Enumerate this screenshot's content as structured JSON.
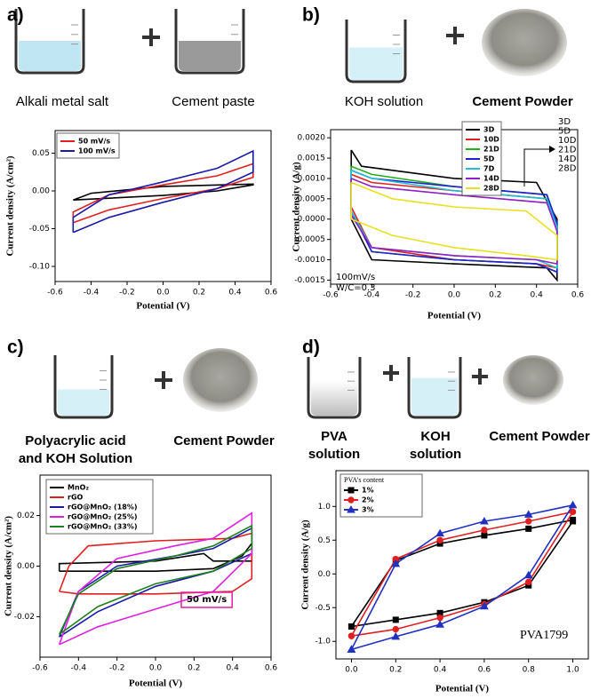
{
  "panels": [
    {
      "label": "a)",
      "ingredients": [
        [
          "Alkali metal salt"
        ],
        [
          "Cement paste"
        ]
      ]
    },
    {
      "label": "b)",
      "ingredients": [
        [
          "KOH solution"
        ],
        [
          "Cement Powder"
        ]
      ]
    },
    {
      "label": "c)",
      "ingredients": [
        [
          "Polyacrylic acid",
          "and KOH Solution"
        ],
        [
          "Cement Powder"
        ]
      ]
    },
    {
      "label": "d)",
      "ingredients": [
        [
          "PVA",
          "solution"
        ],
        [
          "KOH",
          "solution"
        ],
        [
          "Cement Powder"
        ]
      ]
    }
  ],
  "chart_data": [
    {
      "type": "line",
      "x_label": "Potential (V)",
      "y_label": "Current density (A/cm²)",
      "xlim": [
        -0.6,
        0.6
      ],
      "xticks": [
        -0.6,
        -0.4,
        -0.2,
        {
          "value": 0,
          "label": "0.0"
        },
        0.2,
        0.4,
        0.6
      ],
      "ylim": [
        -0.12,
        0.08
      ],
      "yticks": [
        0.05,
        {
          "value": 0,
          "label": "0.00"
        },
        -0.05,
        {
          "value": -0.1,
          "label": "-0.10"
        }
      ],
      "legend": "upper left",
      "series": [
        {
          "color": "#000000",
          "x": [
            -0.5,
            -0.4,
            0,
            0.5,
            0.5,
            0.3,
            0,
            -0.5
          ],
          "values": [
            -0.012,
            -0.003,
            0.006,
            0.009,
            0.008,
            0.0,
            -0.006,
            -0.012
          ]
        },
        {
          "name": "50 mV/s",
          "color": "#e02020",
          "x": [
            -0.5,
            -0.5,
            -0.3,
            0,
            0.3,
            0.5,
            0.5,
            0.3,
            0,
            -0.3,
            -0.5
          ],
          "values": [
            -0.042,
            -0.028,
            -0.005,
            0.008,
            0.02,
            0.036,
            0.018,
            0.003,
            -0.01,
            -0.025,
            -0.042
          ]
        },
        {
          "name": "100 mV/s",
          "color": "#1a1aa8",
          "x": [
            -0.5,
            -0.5,
            -0.3,
            0,
            0.3,
            0.5,
            0.5,
            0.3,
            0,
            -0.3,
            -0.5
          ],
          "values": [
            -0.055,
            -0.035,
            -0.005,
            0.012,
            0.03,
            0.053,
            0.025,
            0.003,
            -0.015,
            -0.035,
            -0.055
          ]
        }
      ]
    },
    {
      "type": "line",
      "x_label": "Potential (V)",
      "y_label": "Current density (A/g)",
      "xlim": [
        -0.6,
        0.6
      ],
      "xticks": [
        -0.6,
        -0.4,
        -0.2,
        {
          "value": 0,
          "label": "0.0"
        },
        0.2,
        0.4,
        0.6
      ],
      "ylim": [
        -0.0016,
        0.0022
      ],
      "yticks": [
        {
          "value": 0.002,
          "label": "0.0020"
        },
        {
          "value": 0.0015,
          "label": "0.0015"
        },
        {
          "value": 0.001,
          "label": "0.0010"
        },
        {
          "value": 0.0005,
          "label": "0.0005"
        },
        {
          "value": 0,
          "label": "0.0000"
        },
        {
          "value": -0.0005,
          "label": "-0.0005"
        },
        {
          "value": -0.001,
          "label": "-0.0010"
        },
        {
          "value": -0.0015,
          "label": "-0.0015"
        }
      ],
      "legend": "upper center",
      "annotations": [
        "100mV/s",
        "W/C=0.3"
      ],
      "arrow_labels": [
        "3D",
        "5D",
        "10D",
        "21D",
        "14D",
        "28D"
      ],
      "series": [
        {
          "name": "3D",
          "color": "#000000",
          "x": [
            -0.5,
            -0.45,
            0,
            0.4,
            0.5,
            0.5,
            0.45,
            0,
            -0.4,
            -0.5,
            -0.5
          ],
          "values": [
            0.0017,
            0.0013,
            0.001,
            0.0009,
            0.0,
            -0.0015,
            -0.0012,
            -0.0011,
            -0.001,
            0.0,
            0.0017
          ]
        },
        {
          "name": "10D",
          "color": "#e02020",
          "x": [
            -0.5,
            -0.4,
            0,
            0.45,
            0.5,
            0.5,
            0.4,
            0,
            -0.4,
            -0.5,
            -0.5
          ],
          "values": [
            0.0011,
            0.0009,
            0.0007,
            0.0005,
            -0.0002,
            -0.0012,
            -0.0011,
            -0.001,
            -0.0007,
            0.0003,
            0.0011
          ]
        },
        {
          "name": "21D",
          "color": "#20b020",
          "x": [
            -0.5,
            -0.4,
            0,
            0.45,
            0.5,
            0.5,
            0.4,
            0,
            -0.4,
            -0.5,
            -0.5
          ],
          "values": [
            0.0013,
            0.0011,
            0.0008,
            0.0006,
            -0.0001,
            -0.0013,
            -0.0011,
            -0.001,
            -0.0008,
            0.0002,
            0.0013
          ]
        },
        {
          "name": "5D",
          "color": "#2020d0",
          "x": [
            -0.5,
            -0.4,
            0,
            0.45,
            0.5,
            0.5,
            0.4,
            0,
            -0.4,
            -0.5,
            -0.5
          ],
          "values": [
            0.0012,
            0.001,
            0.0008,
            0.0006,
            -0.0001,
            -0.0013,
            -0.0011,
            -0.001,
            -0.0008,
            0.0002,
            0.0012
          ]
        },
        {
          "name": "7D",
          "color": "#20c0d0",
          "x": [
            -0.5,
            -0.4,
            0,
            0.45,
            0.5,
            0.5,
            0.4,
            0,
            -0.4,
            -0.5,
            -0.5
          ],
          "values": [
            0.0012,
            0.001,
            0.0007,
            0.0005,
            -0.0002,
            -0.0012,
            -0.001,
            -0.0009,
            -0.0007,
            0.0002,
            0.0012
          ]
        },
        {
          "name": "14D",
          "color": "#9020c0",
          "x": [
            -0.5,
            -0.4,
            0,
            0.45,
            0.5,
            0.5,
            0.4,
            0,
            -0.4,
            -0.5,
            -0.5
          ],
          "values": [
            0.001,
            0.0008,
            0.0006,
            0.0004,
            -0.0003,
            -0.0011,
            -0.001,
            -0.0009,
            -0.0007,
            0.0001,
            0.001
          ]
        },
        {
          "name": "28D",
          "color": "#e8e020",
          "x": [
            -0.5,
            -0.3,
            0,
            0.35,
            0.5,
            0.5,
            0.35,
            0,
            -0.3,
            -0.5,
            -0.5
          ],
          "values": [
            0.0009,
            0.0005,
            0.0003,
            0.0002,
            -0.0004,
            -0.001,
            -0.0009,
            -0.0007,
            -0.0004,
            0.0,
            0.0009
          ]
        }
      ]
    },
    {
      "type": "line",
      "x_label": "Potential (V)",
      "y_label": "Current density (A/cm²)",
      "xlim": [
        -0.6,
        0.6
      ],
      "xticks": [
        -0.6,
        -0.4,
        -0.2,
        {
          "value": 0,
          "label": "0.0"
        },
        0.2,
        0.4,
        0.6
      ],
      "ylim": [
        -0.036,
        0.036
      ],
      "yticks": [
        0.02,
        {
          "value": 0,
          "label": "0.00"
        },
        -0.02
      ],
      "legend": "upper left",
      "annotations": [
        "50 mV/s"
      ],
      "series": [
        {
          "name": "MnO₂",
          "color": "#000000",
          "x": [
            -0.5,
            0,
            0.3,
            0.45,
            0.5,
            0.5,
            0.3,
            0.25,
            0,
            -0.5,
            -0.5
          ],
          "values": [
            -0.002,
            -0.002,
            -0.001,
            0.004,
            0.009,
            0.002,
            0.002,
            0.005,
            0.002,
            0.001,
            -0.002
          ]
        },
        {
          "name": "rGO",
          "color": "#e02020",
          "x": [
            -0.5,
            -0.45,
            -0.35,
            0,
            0.4,
            0.5,
            0.5,
            0.4,
            0,
            -0.4,
            -0.5
          ],
          "values": [
            -0.01,
            0.0,
            0.008,
            0.01,
            0.011,
            0.013,
            -0.005,
            -0.01,
            -0.011,
            -0.011,
            -0.01
          ]
        },
        {
          "name": "rGO@MnO₂ (18%)",
          "color": "#1a1aa8",
          "x": [
            -0.5,
            -0.4,
            -0.2,
            0.1,
            0.3,
            0.5,
            0.5,
            0.3,
            0,
            -0.3,
            -0.5
          ],
          "values": [
            -0.028,
            -0.01,
            0.0,
            0.004,
            0.007,
            0.015,
            0.005,
            -0.002,
            -0.008,
            -0.018,
            -0.028
          ]
        },
        {
          "name": "rGO@MnO₂ (25%)",
          "color": "#e020e0",
          "x": [
            -0.5,
            -0.4,
            -0.2,
            0.1,
            0.3,
            0.5,
            0.5,
            0.3,
            0,
            -0.3,
            -0.5
          ],
          "values": [
            -0.031,
            -0.01,
            0.003,
            0.008,
            0.011,
            0.021,
            0.005,
            -0.01,
            -0.017,
            -0.024,
            -0.031
          ]
        },
        {
          "name": "rGO@MnO₂ (33%)",
          "color": "#208020",
          "x": [
            -0.5,
            -0.4,
            -0.2,
            0.1,
            0.3,
            0.5,
            0.5,
            0.3,
            0,
            -0.3,
            -0.5
          ],
          "values": [
            -0.027,
            -0.011,
            -0.001,
            0.004,
            0.008,
            0.016,
            0.007,
            -0.002,
            -0.007,
            -0.016,
            -0.027
          ]
        }
      ]
    },
    {
      "type": "line",
      "x_label": "Potential (V)",
      "y_label": "Current density (A/g)",
      "xlim": [
        -0.07,
        1.07
      ],
      "xticks": [
        {
          "value": 0,
          "label": "0.0"
        },
        0.2,
        0.4,
        0.6,
        0.8,
        {
          "value": 1,
          "label": "1.0"
        }
      ],
      "ylim": [
        -1.26,
        1.53
      ],
      "yticks": [
        {
          "value": 1,
          "label": "1.0"
        },
        0.5,
        {
          "value": 0,
          "label": "0.0"
        },
        -0.5,
        {
          "value": -1,
          "label": "-1.0"
        }
      ],
      "legend": "upper left",
      "legend_title": "PVA's content",
      "annotations": [
        "PVA1799"
      ],
      "series": [
        {
          "name": "1%",
          "color": "#000000",
          "marker": "square",
          "x": [
            0,
            0.2,
            0.4,
            0.6,
            0.8,
            1.0,
            1.0,
            0.8,
            0.6,
            0.4,
            0.2,
            0
          ],
          "values": [
            -0.78,
            0.2,
            0.45,
            0.57,
            0.67,
            0.8,
            0.78,
            -0.17,
            -0.42,
            -0.58,
            -0.68,
            -0.78
          ]
        },
        {
          "name": "2%",
          "color": "#e02020",
          "marker": "circle",
          "x": [
            0,
            0.2,
            0.4,
            0.6,
            0.8,
            1.0,
            0.8,
            0.6,
            0.4,
            0.2,
            0
          ],
          "values": [
            -0.92,
            0.22,
            0.5,
            0.65,
            0.78,
            0.92,
            -0.12,
            -0.45,
            -0.65,
            -0.82,
            -0.92
          ]
        },
        {
          "name": "3%",
          "color": "#2030c0",
          "marker": "triangle",
          "x": [
            0,
            0.2,
            0.4,
            0.6,
            0.8,
            1.0,
            0.8,
            0.6,
            0.4,
            0.2,
            0
          ],
          "values": [
            -1.12,
            0.15,
            0.6,
            0.78,
            0.88,
            1.02,
            -0.02,
            -0.48,
            -0.75,
            -0.93,
            -1.12
          ]
        }
      ]
    }
  ]
}
